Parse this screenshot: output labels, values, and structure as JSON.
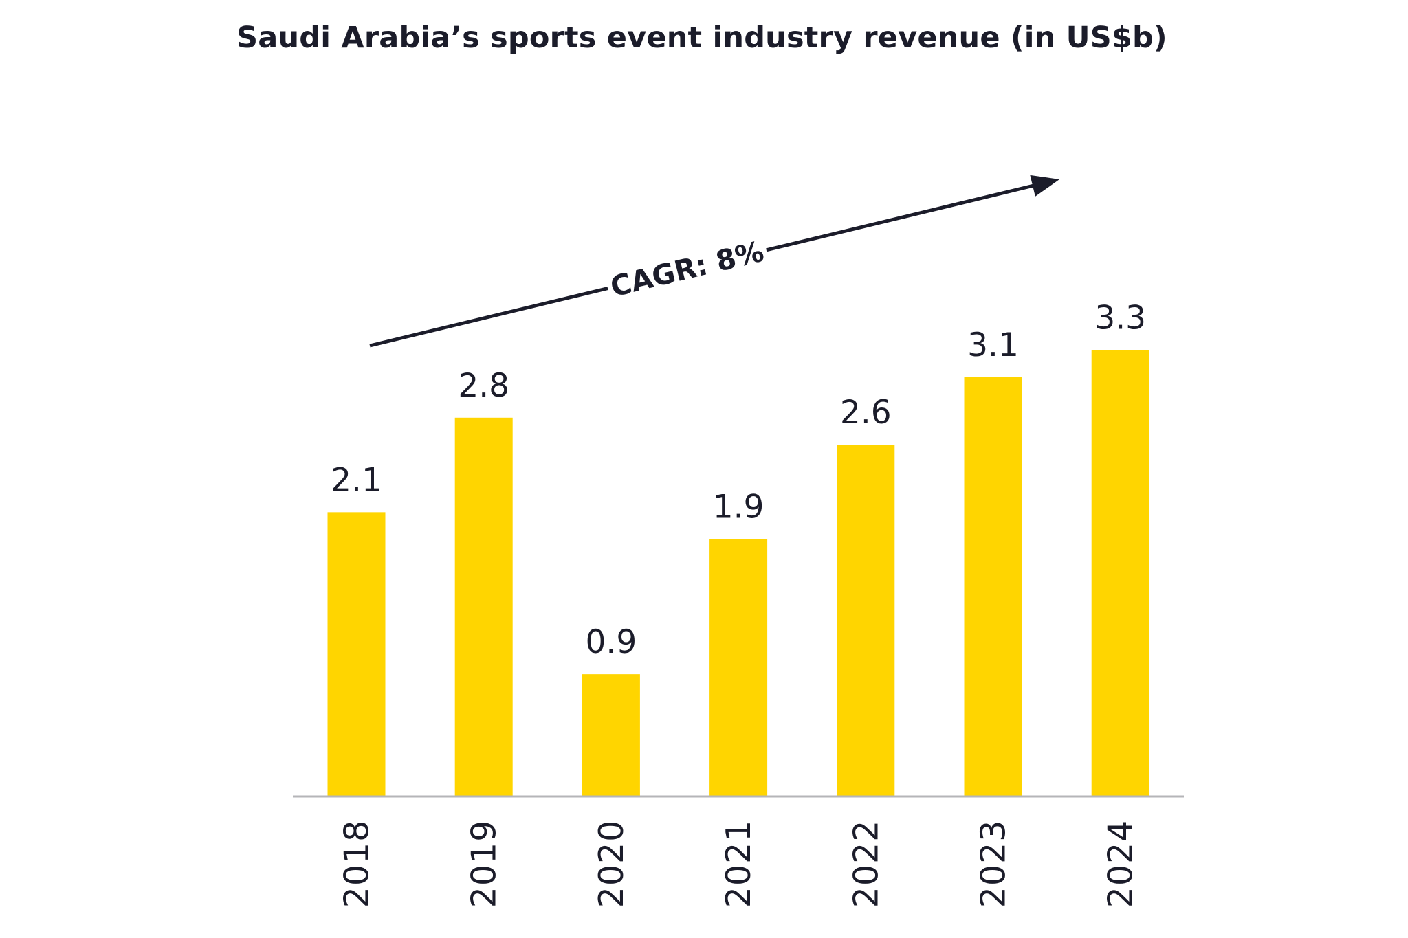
{
  "chart_data": {
    "type": "bar",
    "title": "Saudi Arabia’s sports event industry revenue (in US$b)",
    "xlabel": "",
    "ylabel": "",
    "categories": [
      "2018",
      "2019",
      "2020",
      "2021",
      "2022",
      "2023",
      "2024"
    ],
    "values": [
      2.1,
      2.8,
      0.9,
      1.9,
      2.6,
      3.1,
      3.3
    ],
    "data_labels": [
      "2.1",
      "2.8",
      "0.9",
      "1.9",
      "2.6",
      "3.1",
      "3.3"
    ],
    "ylim": [
      0,
      3.3
    ],
    "grid": false,
    "legend": "none",
    "annotation": {
      "text": "CAGR: 8%",
      "type": "upward-arrow"
    },
    "colors": {
      "bar": "#FFD500",
      "text": "#1b1c2a",
      "axis": "#b5b5b8",
      "arrow": "#1b1c2a"
    }
  }
}
